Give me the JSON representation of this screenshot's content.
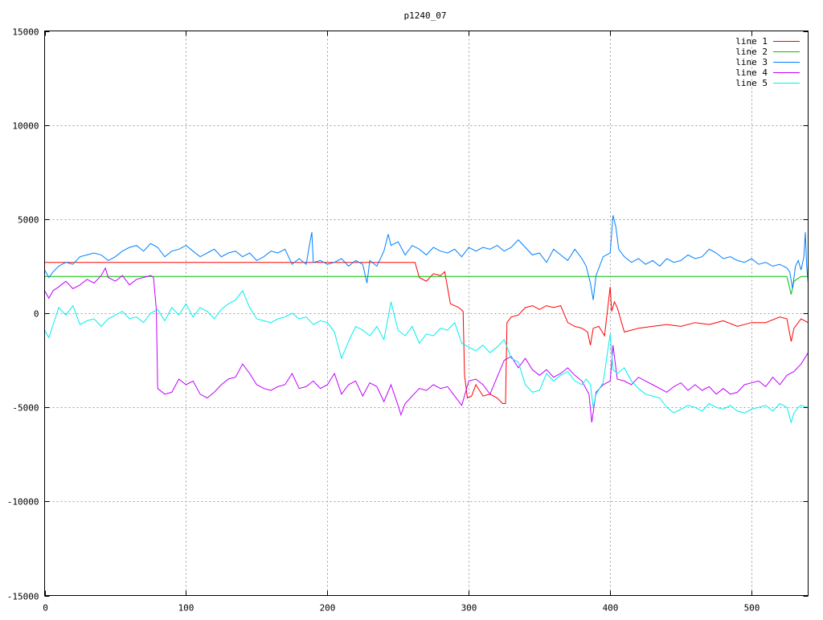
{
  "chart_data": {
    "type": "line",
    "title": "p1240_07",
    "xlabel": "",
    "ylabel": "",
    "xlim": [
      0,
      540
    ],
    "ylim": [
      -15000,
      15000
    ],
    "x_ticks": [
      0,
      100,
      200,
      300,
      400,
      500
    ],
    "y_ticks": [
      -15000,
      -10000,
      -5000,
      0,
      5000,
      10000,
      15000
    ],
    "grid": true,
    "legend_position": "top-right",
    "colors": {
      "line 1": "#ff0000",
      "line 2": "#00c000",
      "line 3": "#0080ff",
      "line 4": "#c000ff",
      "line 5": "#00eeee"
    },
    "series": [
      {
        "name": "line 1",
        "x": [
          0,
          100,
          200,
          262,
          265,
          270,
          275,
          280,
          283,
          287,
          290,
          293,
          296,
          297,
          299,
          302,
          305,
          310,
          315,
          320,
          324,
          326,
          327,
          330,
          335,
          340,
          345,
          350,
          355,
          360,
          365,
          370,
          375,
          380,
          384,
          386,
          388,
          392,
          396,
          400,
          401,
          403,
          405,
          410,
          415,
          420,
          430,
          440,
          450,
          460,
          470,
          480,
          490,
          500,
          510,
          520,
          525,
          528,
          530,
          535,
          540
        ],
        "y": [
          2700,
          2700,
          2700,
          2700,
          1900,
          1700,
          2100,
          2000,
          2200,
          500,
          400,
          300,
          100,
          -3300,
          -4500,
          -4400,
          -3800,
          -4400,
          -4300,
          -4500,
          -4800,
          -4800,
          -500,
          -200,
          -100,
          300,
          400,
          200,
          400,
          300,
          400,
          -500,
          -700,
          -800,
          -1000,
          -1700,
          -800,
          -700,
          -1200,
          1400,
          100,
          600,
          300,
          -1000,
          -900,
          -800,
          -700,
          -600,
          -700,
          -500,
          -600,
          -400,
          -700,
          -500,
          -500,
          -200,
          -300,
          -1500,
          -800,
          -300,
          -500
        ]
      },
      {
        "name": "line 2",
        "x": [
          0,
          100,
          200,
          300,
          400,
          500,
          525,
          528,
          530,
          535,
          540
        ],
        "y": [
          1950,
          1950,
          1950,
          1950,
          1950,
          1950,
          1950,
          1000,
          1700,
          1950,
          1950
        ]
      },
      {
        "name": "line 3",
        "x": [
          0,
          3,
          6,
          10,
          15,
          20,
          25,
          30,
          35,
          40,
          45,
          50,
          55,
          60,
          65,
          70,
          75,
          80,
          85,
          90,
          95,
          100,
          105,
          110,
          115,
          120,
          125,
          130,
          135,
          140,
          145,
          150,
          155,
          160,
          165,
          170,
          175,
          180,
          185,
          187,
          189,
          190,
          195,
          200,
          205,
          210,
          215,
          220,
          225,
          228,
          230,
          235,
          240,
          243,
          245,
          250,
          255,
          260,
          265,
          270,
          275,
          280,
          285,
          290,
          295,
          300,
          305,
          310,
          315,
          320,
          325,
          330,
          335,
          340,
          345,
          350,
          355,
          360,
          365,
          370,
          375,
          380,
          383,
          386,
          388,
          390,
          395,
          400,
          402,
          404,
          406,
          410,
          415,
          420,
          425,
          430,
          435,
          440,
          445,
          450,
          455,
          460,
          465,
          470,
          475,
          480,
          485,
          490,
          495,
          500,
          505,
          510,
          515,
          520,
          525,
          527,
          529,
          531,
          533,
          535,
          537,
          538,
          539,
          540
        ],
        "y": [
          2300,
          1900,
          2200,
          2500,
          2700,
          2600,
          3000,
          3100,
          3200,
          3100,
          2800,
          3000,
          3300,
          3500,
          3600,
          3300,
          3700,
          3500,
          3000,
          3300,
          3400,
          3600,
          3300,
          3000,
          3200,
          3400,
          3000,
          3200,
          3300,
          3000,
          3200,
          2800,
          3000,
          3300,
          3200,
          3400,
          2600,
          2900,
          2600,
          3500,
          4300,
          2700,
          2800,
          2600,
          2700,
          2900,
          2500,
          2800,
          2600,
          1600,
          2800,
          2500,
          3300,
          4200,
          3600,
          3800,
          3100,
          3600,
          3400,
          3100,
          3500,
          3300,
          3200,
          3400,
          3000,
          3500,
          3300,
          3500,
          3400,
          3600,
          3300,
          3500,
          3900,
          3500,
          3100,
          3200,
          2700,
          3400,
          3100,
          2800,
          3400,
          2900,
          2500,
          1600,
          700,
          2000,
          3000,
          3200,
          5200,
          4600,
          3400,
          3000,
          2700,
          2900,
          2600,
          2800,
          2500,
          2900,
          2700,
          2800,
          3100,
          2900,
          3000,
          3400,
          3200,
          2900,
          3000,
          2800,
          2700,
          2900,
          2600,
          2700,
          2500,
          2600,
          2400,
          2200,
          1300,
          2500,
          2800,
          2300,
          3000,
          4300,
          2500,
          1600
        ]
      },
      {
        "name": "line 4",
        "x": [
          0,
          3,
          6,
          10,
          15,
          20,
          25,
          30,
          35,
          40,
          43,
          45,
          50,
          55,
          60,
          65,
          70,
          75,
          77,
          79,
          80,
          85,
          90,
          95,
          100,
          105,
          110,
          115,
          120,
          125,
          130,
          135,
          140,
          145,
          150,
          155,
          160,
          165,
          170,
          175,
          180,
          185,
          190,
          195,
          200,
          205,
          210,
          215,
          220,
          225,
          230,
          235,
          240,
          245,
          250,
          252,
          255,
          260,
          265,
          270,
          275,
          280,
          285,
          290,
          295,
          300,
          305,
          310,
          315,
          320,
          325,
          330,
          335,
          340,
          345,
          350,
          355,
          360,
          365,
          370,
          375,
          380,
          385,
          387,
          390,
          395,
          400,
          402,
          405,
          410,
          415,
          420,
          425,
          430,
          435,
          440,
          445,
          450,
          455,
          460,
          465,
          470,
          475,
          480,
          485,
          490,
          495,
          500,
          505,
          510,
          515,
          520,
          525,
          530,
          535,
          540
        ],
        "y": [
          1200,
          800,
          1200,
          1400,
          1700,
          1300,
          1500,
          1800,
          1600,
          2000,
          2400,
          1900,
          1700,
          2000,
          1500,
          1800,
          1900,
          2000,
          1900,
          200,
          -4000,
          -4300,
          -4200,
          -3500,
          -3800,
          -3600,
          -4300,
          -4500,
          -4200,
          -3800,
          -3500,
          -3400,
          -2700,
          -3200,
          -3800,
          -4000,
          -4100,
          -3900,
          -3800,
          -3200,
          -4000,
          -3900,
          -3600,
          -4000,
          -3800,
          -3200,
          -4300,
          -3800,
          -3600,
          -4400,
          -3700,
          -3900,
          -4700,
          -3800,
          -4900,
          -5400,
          -4800,
          -4400,
          -4000,
          -4100,
          -3800,
          -4000,
          -3900,
          -4400,
          -4900,
          -3600,
          -3500,
          -3800,
          -4300,
          -3400,
          -2500,
          -2300,
          -2900,
          -2400,
          -3000,
          -3300,
          -3000,
          -3400,
          -3200,
          -2900,
          -3300,
          -3600,
          -4300,
          -5800,
          -4200,
          -3800,
          -3600,
          -1700,
          -3500,
          -3600,
          -3800,
          -3400,
          -3600,
          -3800,
          -4000,
          -4200,
          -3900,
          -3700,
          -4100,
          -3800,
          -4100,
          -3900,
          -4300,
          -4000,
          -4300,
          -4200,
          -3800,
          -3700,
          -3600,
          -3900,
          -3400,
          -3800,
          -3300,
          -3100,
          -2700,
          -2100
        ]
      },
      {
        "name": "line 5",
        "x": [
          0,
          3,
          6,
          10,
          15,
          20,
          25,
          30,
          35,
          40,
          45,
          50,
          55,
          60,
          65,
          70,
          75,
          80,
          85,
          90,
          95,
          100,
          105,
          110,
          115,
          120,
          125,
          130,
          135,
          140,
          145,
          150,
          155,
          160,
          165,
          170,
          175,
          180,
          185,
          190,
          195,
          200,
          205,
          210,
          215,
          220,
          225,
          230,
          235,
          240,
          245,
          250,
          255,
          260,
          265,
          270,
          275,
          280,
          285,
          290,
          295,
          300,
          305,
          310,
          315,
          320,
          325,
          330,
          335,
          340,
          345,
          350,
          355,
          360,
          365,
          370,
          375,
          380,
          383,
          386,
          388,
          390,
          395,
          400,
          402,
          405,
          410,
          415,
          420,
          425,
          430,
          435,
          440,
          445,
          450,
          455,
          460,
          465,
          470,
          475,
          480,
          485,
          490,
          495,
          500,
          505,
          510,
          515,
          520,
          525,
          528,
          530,
          533,
          535,
          540
        ],
        "y": [
          -900,
          -1300,
          -600,
          300,
          -100,
          400,
          -600,
          -400,
          -300,
          -700,
          -300,
          -100,
          100,
          -300,
          -200,
          -500,
          0,
          200,
          -400,
          300,
          -100,
          500,
          -200,
          300,
          100,
          -300,
          200,
          500,
          700,
          1200,
          300,
          -300,
          -400,
          -500,
          -300,
          -200,
          0,
          -300,
          -200,
          -600,
          -400,
          -500,
          -1000,
          -2400,
          -1500,
          -700,
          -900,
          -1200,
          -700,
          -1400,
          600,
          -900,
          -1200,
          -700,
          -1600,
          -1100,
          -1200,
          -800,
          -900,
          -500,
          -1600,
          -1800,
          -2000,
          -1700,
          -2100,
          -1800,
          -1400,
          -2400,
          -2600,
          -3800,
          -4200,
          -4100,
          -3200,
          -3600,
          -3300,
          -3100,
          -3600,
          -3800,
          -3500,
          -3800,
          -5000,
          -4300,
          -3700,
          -1100,
          -3000,
          -3200,
          -2900,
          -3600,
          -4000,
          -4300,
          -4400,
          -4500,
          -5000,
          -5300,
          -5100,
          -4900,
          -5000,
          -5200,
          -4800,
          -5000,
          -5100,
          -4900,
          -5200,
          -5300,
          -5100,
          -5000,
          -4900,
          -5200,
          -4800,
          -5000,
          -5800,
          -5300,
          -5000,
          -4900,
          -5000
        ]
      }
    ]
  }
}
